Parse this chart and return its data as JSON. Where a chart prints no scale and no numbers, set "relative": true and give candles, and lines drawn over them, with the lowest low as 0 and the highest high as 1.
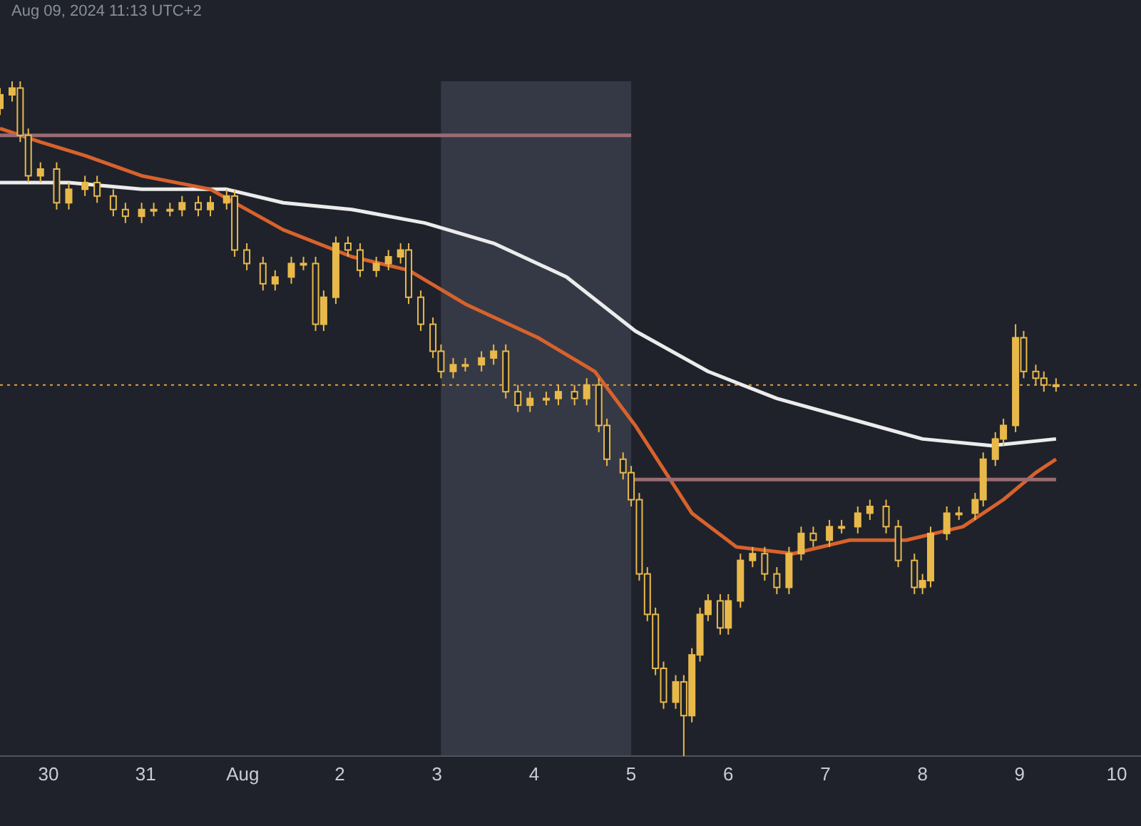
{
  "chart_data": {
    "type": "candlestick",
    "relative": true,
    "color": "#e8b94a",
    "annotations": [
      "Aug 09, 2024 11:13 UTC+2"
    ],
    "xlim": [
      "2024-07-29T12:00",
      "2024-08-10T06:00"
    ],
    "xticks": [
      {
        "value": "2024-07-30",
        "label": "30"
      },
      {
        "value": "2024-07-31",
        "label": "31"
      },
      {
        "value": "2024-08-01",
        "label": "Aug"
      },
      {
        "value": "2024-08-02",
        "label": "2"
      },
      {
        "value": "2024-08-03",
        "label": "3"
      },
      {
        "value": "2024-08-04",
        "label": "4"
      },
      {
        "value": "2024-08-05",
        "label": "5"
      },
      {
        "value": "2024-08-06",
        "label": "6"
      },
      {
        "value": "2024-08-07",
        "label": "7"
      },
      {
        "value": "2024-08-08",
        "label": "8"
      },
      {
        "value": "2024-08-09",
        "label": "9"
      },
      {
        "value": "2024-08-10",
        "label": "10"
      }
    ],
    "tick_labels": "x",
    "x": [
      "2024-07-29T12:00",
      "2024-07-29T15:00",
      "2024-07-29T17:00",
      "2024-07-29T19:00",
      "2024-07-29T22:00",
      "2024-07-30T02:00",
      "2024-07-30T05:00",
      "2024-07-30T09:00",
      "2024-07-30T12:00",
      "2024-07-30T16:00",
      "2024-07-30T19:00",
      "2024-07-30T23:00",
      "2024-07-31T02:00",
      "2024-07-31T06:00",
      "2024-07-31T09:00",
      "2024-07-31T13:00",
      "2024-07-31T16:00",
      "2024-07-31T20:00",
      "2024-07-31T22:00",
      "2024-08-01T01:00",
      "2024-08-01T05:00",
      "2024-08-01T08:00",
      "2024-08-01T12:00",
      "2024-08-01T15:00",
      "2024-08-01T18:00",
      "2024-08-01T20:00",
      "2024-08-01T23:00",
      "2024-08-02T02:00",
      "2024-08-02T05:00",
      "2024-08-02T09:00",
      "2024-08-02T12:00",
      "2024-08-02T15:00",
      "2024-08-02T17:00",
      "2024-08-02T20:00",
      "2024-08-02T23:00",
      "2024-08-03T01:00",
      "2024-08-03T04:00",
      "2024-08-03T07:00",
      "2024-08-03T11:00",
      "2024-08-03T14:00",
      "2024-08-03T17:00",
      "2024-08-03T20:00",
      "2024-08-03T23:00",
      "2024-08-04T03:00",
      "2024-08-04T06:00",
      "2024-08-04T10:00",
      "2024-08-04T13:00",
      "2024-08-04T16:00",
      "2024-08-04T18:00",
      "2024-08-04T22:00",
      "2024-08-05T00:00",
      "2024-08-05T02:00",
      "2024-08-05T04:00",
      "2024-08-05T06:00",
      "2024-08-05T08:00",
      "2024-08-05T11:00",
      "2024-08-05T13:00",
      "2024-08-05T15:00",
      "2024-08-05T17:00",
      "2024-08-05T19:00",
      "2024-08-05T22:00",
      "2024-08-06T00:00",
      "2024-08-06T03:00",
      "2024-08-06T06:00",
      "2024-08-06T09:00",
      "2024-08-06T12:00",
      "2024-08-06T15:00",
      "2024-08-06T18:00",
      "2024-08-06T21:00",
      "2024-08-07T01:00",
      "2024-08-07T04:00",
      "2024-08-07T08:00",
      "2024-08-07T11:00",
      "2024-08-07T15:00",
      "2024-08-07T18:00",
      "2024-08-07T22:00",
      "2024-08-08T00:00",
      "2024-08-08T02:00",
      "2024-08-08T06:00",
      "2024-08-08T09:00",
      "2024-08-08T13:00",
      "2024-08-08T15:00",
      "2024-08-08T18:00",
      "2024-08-08T20:00",
      "2024-08-08T23:00",
      "2024-08-09T01:00",
      "2024-08-09T04:00",
      "2024-08-09T06:00",
      "2024-08-09T09:00"
    ],
    "ohlc": [
      [
        0.96,
        0.99,
        0.95,
        0.98
      ],
      [
        0.98,
        1.0,
        0.97,
        0.99
      ],
      [
        0.99,
        1.0,
        0.91,
        0.92
      ],
      [
        0.92,
        0.93,
        0.85,
        0.86
      ],
      [
        0.86,
        0.88,
        0.85,
        0.87
      ],
      [
        0.87,
        0.88,
        0.81,
        0.82
      ],
      [
        0.82,
        0.85,
        0.81,
        0.84
      ],
      [
        0.84,
        0.86,
        0.83,
        0.85
      ],
      [
        0.85,
        0.86,
        0.82,
        0.83
      ],
      [
        0.83,
        0.84,
        0.8,
        0.81
      ],
      [
        0.81,
        0.82,
        0.79,
        0.8
      ],
      [
        0.8,
        0.82,
        0.79,
        0.81
      ],
      [
        0.81,
        0.82,
        0.8,
        0.81
      ],
      [
        0.81,
        0.82,
        0.8,
        0.81
      ],
      [
        0.81,
        0.83,
        0.8,
        0.82
      ],
      [
        0.82,
        0.83,
        0.8,
        0.81
      ],
      [
        0.81,
        0.83,
        0.8,
        0.82
      ],
      [
        0.82,
        0.84,
        0.81,
        0.83
      ],
      [
        0.83,
        0.84,
        0.74,
        0.75
      ],
      [
        0.75,
        0.76,
        0.72,
        0.73
      ],
      [
        0.73,
        0.74,
        0.69,
        0.7
      ],
      [
        0.7,
        0.72,
        0.69,
        0.71
      ],
      [
        0.71,
        0.74,
        0.7,
        0.73
      ],
      [
        0.73,
        0.74,
        0.72,
        0.73
      ],
      [
        0.73,
        0.74,
        0.63,
        0.64
      ],
      [
        0.64,
        0.69,
        0.63,
        0.68
      ],
      [
        0.68,
        0.77,
        0.67,
        0.76
      ],
      [
        0.76,
        0.77,
        0.74,
        0.75
      ],
      [
        0.75,
        0.76,
        0.71,
        0.72
      ],
      [
        0.72,
        0.74,
        0.71,
        0.73
      ],
      [
        0.73,
        0.75,
        0.72,
        0.74
      ],
      [
        0.74,
        0.76,
        0.73,
        0.75
      ],
      [
        0.75,
        0.76,
        0.67,
        0.68
      ],
      [
        0.68,
        0.69,
        0.63,
        0.64
      ],
      [
        0.64,
        0.65,
        0.59,
        0.6
      ],
      [
        0.6,
        0.61,
        0.56,
        0.57
      ],
      [
        0.57,
        0.59,
        0.56,
        0.58
      ],
      [
        0.58,
        0.59,
        0.57,
        0.58
      ],
      [
        0.58,
        0.6,
        0.57,
        0.59
      ],
      [
        0.59,
        0.61,
        0.58,
        0.6
      ],
      [
        0.6,
        0.61,
        0.53,
        0.54
      ],
      [
        0.54,
        0.55,
        0.51,
        0.52
      ],
      [
        0.52,
        0.54,
        0.51,
        0.53
      ],
      [
        0.53,
        0.54,
        0.52,
        0.53
      ],
      [
        0.53,
        0.55,
        0.52,
        0.54
      ],
      [
        0.54,
        0.55,
        0.52,
        0.53
      ],
      [
        0.53,
        0.56,
        0.52,
        0.55
      ],
      [
        0.55,
        0.56,
        0.48,
        0.49
      ],
      [
        0.49,
        0.5,
        0.43,
        0.44
      ],
      [
        0.44,
        0.45,
        0.41,
        0.42
      ],
      [
        0.42,
        0.43,
        0.37,
        0.38
      ],
      [
        0.38,
        0.39,
        0.26,
        0.27
      ],
      [
        0.27,
        0.28,
        0.2,
        0.21
      ],
      [
        0.21,
        0.22,
        0.12,
        0.13
      ],
      [
        0.13,
        0.14,
        0.07,
        0.08
      ],
      [
        0.08,
        0.12,
        0.07,
        0.11
      ],
      [
        0.11,
        0.12,
        0.0,
        0.06
      ],
      [
        0.06,
        0.16,
        0.05,
        0.15
      ],
      [
        0.15,
        0.22,
        0.14,
        0.21
      ],
      [
        0.21,
        0.24,
        0.2,
        0.23
      ],
      [
        0.23,
        0.24,
        0.18,
        0.19
      ],
      [
        0.19,
        0.24,
        0.18,
        0.23
      ],
      [
        0.23,
        0.3,
        0.22,
        0.29
      ],
      [
        0.29,
        0.31,
        0.28,
        0.3
      ],
      [
        0.3,
        0.31,
        0.26,
        0.27
      ],
      [
        0.27,
        0.28,
        0.24,
        0.25
      ],
      [
        0.25,
        0.31,
        0.24,
        0.3
      ],
      [
        0.3,
        0.34,
        0.29,
        0.33
      ],
      [
        0.33,
        0.34,
        0.31,
        0.32
      ],
      [
        0.32,
        0.35,
        0.31,
        0.34
      ],
      [
        0.34,
        0.35,
        0.33,
        0.34
      ],
      [
        0.34,
        0.37,
        0.33,
        0.36
      ],
      [
        0.36,
        0.38,
        0.35,
        0.37
      ],
      [
        0.37,
        0.38,
        0.33,
        0.34
      ],
      [
        0.34,
        0.35,
        0.28,
        0.29
      ],
      [
        0.29,
        0.3,
        0.24,
        0.25
      ],
      [
        0.25,
        0.27,
        0.24,
        0.26
      ],
      [
        0.26,
        0.34,
        0.25,
        0.33
      ],
      [
        0.33,
        0.37,
        0.32,
        0.36
      ],
      [
        0.36,
        0.37,
        0.35,
        0.36
      ],
      [
        0.36,
        0.39,
        0.35,
        0.38
      ],
      [
        0.38,
        0.45,
        0.37,
        0.44
      ],
      [
        0.44,
        0.48,
        0.43,
        0.47
      ],
      [
        0.47,
        0.5,
        0.46,
        0.49
      ],
      [
        0.49,
        0.64,
        0.48,
        0.62
      ],
      [
        0.62,
        0.63,
        0.56,
        0.57
      ],
      [
        0.57,
        0.58,
        0.55,
        0.56
      ],
      [
        0.56,
        0.57,
        0.54,
        0.55
      ],
      [
        0.55,
        0.56,
        0.54,
        0.55
      ]
    ],
    "series": [
      {
        "type": "line",
        "color": "#ececec",
        "x": [
          "2024-07-29T12:00",
          "2024-07-30T05:00",
          "2024-07-30T23:00",
          "2024-07-31T20:00",
          "2024-08-01T10:00",
          "2024-08-02T03:00",
          "2024-08-02T21:00",
          "2024-08-03T14:00",
          "2024-08-04T08:00",
          "2024-08-05T01:00",
          "2024-08-05T19:00",
          "2024-08-06T12:00",
          "2024-08-07T06:00",
          "2024-08-08T00:00",
          "2024-08-08T17:00",
          "2024-08-09T09:00"
        ],
        "values": [
          0.85,
          0.85,
          0.84,
          0.84,
          0.82,
          0.81,
          0.79,
          0.76,
          0.71,
          0.63,
          0.57,
          0.53,
          0.5,
          0.47,
          0.46,
          0.47
        ]
      },
      {
        "type": "line",
        "color": "#d8622c",
        "x": [
          "2024-07-29T12:00",
          "2024-07-29T22:00",
          "2024-07-30T09:00",
          "2024-07-30T23:00",
          "2024-07-31T16:00",
          "2024-08-01T10:00",
          "2024-08-02T03:00",
          "2024-08-02T17:00",
          "2024-08-03T07:00",
          "2024-08-04T01:00",
          "2024-08-04T15:00",
          "2024-08-05T01:00",
          "2024-08-05T15:00",
          "2024-08-06T02:00",
          "2024-08-06T16:00",
          "2024-08-07T06:00",
          "2024-08-07T20:00",
          "2024-08-08T10:00",
          "2024-08-08T20:00",
          "2024-08-09T04:00",
          "2024-08-09T09:00"
        ],
        "values": [
          0.93,
          0.91,
          0.89,
          0.86,
          0.84,
          0.78,
          0.74,
          0.72,
          0.67,
          0.62,
          0.57,
          0.49,
          0.36,
          0.31,
          0.3,
          0.32,
          0.32,
          0.34,
          0.38,
          0.42,
          0.44
        ]
      },
      {
        "type": "line",
        "color": "#9b6b73",
        "x": [
          "2024-07-29T12:00",
          "2024-08-05T00:00"
        ],
        "values": [
          0.92,
          0.92
        ]
      },
      {
        "type": "line",
        "color": "#9b6b73",
        "x": [
          "2024-08-05T00:00",
          "2024-08-09T09:00"
        ],
        "values": [
          0.41,
          0.41
        ]
      }
    ],
    "ref_lines": [
      {
        "axis": "y",
        "value": 0.55,
        "color": "#e8a33c",
        "line_style": "dotted"
      }
    ],
    "bands": [
      {
        "axis": "x",
        "from": "2024-08-03T01:00",
        "to": "2024-08-05T00:00",
        "color": "#353945"
      }
    ]
  }
}
